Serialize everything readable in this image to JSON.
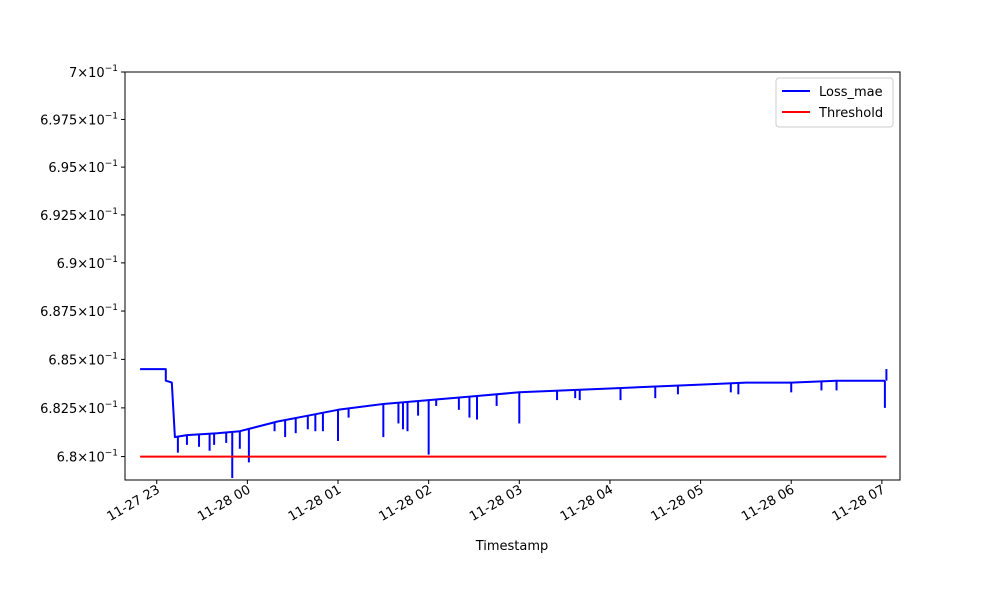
{
  "chart_data": {
    "type": "line",
    "xlabel": "Timestamp",
    "ylabel": "",
    "ylim": [
      0.6788,
      0.7
    ],
    "x_range": [
      "11-27 22:39",
      "11-28 07:12"
    ],
    "y_scale": "log",
    "x_ticks": [
      {
        "label": "11-27 23",
        "value": "11-27 23:00"
      },
      {
        "label": "11-28 00",
        "value": "11-28 00:00"
      },
      {
        "label": "11-28 01",
        "value": "11-28 01:00"
      },
      {
        "label": "11-28 02",
        "value": "11-28 02:00"
      },
      {
        "label": "11-28 03",
        "value": "11-28 03:00"
      },
      {
        "label": "11-28 04",
        "value": "11-28 04:00"
      },
      {
        "label": "11-28 05",
        "value": "11-28 05:00"
      },
      {
        "label": "11-28 06",
        "value": "11-28 06:00"
      },
      {
        "label": "11-28 07",
        "value": "11-28 07:00"
      }
    ],
    "y_ticks": [
      {
        "mant": "6.8",
        "value": 0.68
      },
      {
        "mant": "6.825",
        "value": 0.6825
      },
      {
        "mant": "6.85",
        "value": 0.685
      },
      {
        "mant": "6.875",
        "value": 0.6875
      },
      {
        "mant": "6.9",
        "value": 0.69
      },
      {
        "mant": "6.925",
        "value": 0.6925
      },
      {
        "mant": "6.95",
        "value": 0.695
      },
      {
        "mant": "6.975",
        "value": 0.6975
      },
      {
        "mant": "7",
        "value": 0.7
      }
    ],
    "y_tick_base": "10",
    "y_tick_exp": "−1",
    "legend": "top-right",
    "series": [
      {
        "name": "Loss_mae",
        "color": "#0000ff",
        "points": [
          [
            "11-27 22:49",
            0.6845
          ],
          [
            "11-27 23:06",
            0.6845
          ],
          [
            "11-27 23:06",
            0.6839
          ],
          [
            "11-27 23:10",
            0.6838
          ],
          [
            "11-27 23:12",
            0.681
          ],
          [
            "11-27 23:20",
            0.6811
          ],
          [
            "11-27 23:40",
            0.6812
          ],
          [
            "11-27 23:55",
            0.6813
          ],
          [
            "11-28 00:20",
            0.6818
          ],
          [
            "11-28 00:40",
            0.6821
          ],
          [
            "11-28 01:00",
            0.6824
          ],
          [
            "11-28 01:30",
            0.6827
          ],
          [
            "11-28 02:00",
            0.6829
          ],
          [
            "11-28 02:30",
            0.6831
          ],
          [
            "11-28 03:00",
            0.6833
          ],
          [
            "11-28 03:30",
            0.6834
          ],
          [
            "11-28 04:00",
            0.6835
          ],
          [
            "11-28 04:30",
            0.6836
          ],
          [
            "11-28 05:00",
            0.6837
          ],
          [
            "11-28 05:30",
            0.6838
          ],
          [
            "11-28 06:00",
            0.6838
          ],
          [
            "11-28 06:30",
            0.6839
          ],
          [
            "11-28 07:00",
            0.6839
          ],
          [
            "11-28 07:02",
            0.6839
          ]
        ],
        "spikes": [
          [
            "11-27 23:14",
            0.6802
          ],
          [
            "11-27 23:20",
            0.6806
          ],
          [
            "11-27 23:28",
            0.6805
          ],
          [
            "11-27 23:35",
            0.6803
          ],
          [
            "11-27 23:38",
            0.6806
          ],
          [
            "11-27 23:46",
            0.6807
          ],
          [
            "11-27 23:50",
            0.6789
          ],
          [
            "11-27 23:55",
            0.6804
          ],
          [
            "11-28 00:01",
            0.6797
          ],
          [
            "11-28 00:18",
            0.6813
          ],
          [
            "11-28 00:25",
            0.681
          ],
          [
            "11-28 00:32",
            0.6812
          ],
          [
            "11-28 00:40",
            0.6814
          ],
          [
            "11-28 00:45",
            0.6813
          ],
          [
            "11-28 00:50",
            0.6813
          ],
          [
            "11-28 01:00",
            0.6808
          ],
          [
            "11-28 01:07",
            0.682
          ],
          [
            "11-28 01:30",
            0.681
          ],
          [
            "11-28 01:40",
            0.6817
          ],
          [
            "11-28 01:43",
            0.6814
          ],
          [
            "11-28 01:46",
            0.6813
          ],
          [
            "11-28 01:53",
            0.6821
          ],
          [
            "11-28 02:00",
            0.6801
          ],
          [
            "11-28 02:05",
            0.6826
          ],
          [
            "11-28 02:20",
            0.6824
          ],
          [
            "11-28 02:27",
            0.682
          ],
          [
            "11-28 02:32",
            0.6819
          ],
          [
            "11-28 02:45",
            0.6826
          ],
          [
            "11-28 03:00",
            0.6817
          ],
          [
            "11-28 03:25",
            0.6829
          ],
          [
            "11-28 03:37",
            0.683
          ],
          [
            "11-28 03:40",
            0.6829
          ],
          [
            "11-28 04:07",
            0.6829
          ],
          [
            "11-28 04:30",
            0.683
          ],
          [
            "11-28 04:45",
            0.6832
          ],
          [
            "11-28 05:20",
            0.6833
          ],
          [
            "11-28 05:25",
            0.6832
          ],
          [
            "11-28 06:00",
            0.6833
          ],
          [
            "11-28 06:20",
            0.6834
          ],
          [
            "11-28 06:30",
            0.6834
          ],
          [
            "11-28 07:02",
            0.6825
          ]
        ],
        "end_spike": [
          "11-28 07:03",
          0.6845
        ]
      },
      {
        "name": "Threshold",
        "color": "#ff0000",
        "points": [
          [
            "11-27 22:49",
            0.68
          ],
          [
            "11-28 07:03",
            0.68
          ]
        ]
      }
    ]
  }
}
